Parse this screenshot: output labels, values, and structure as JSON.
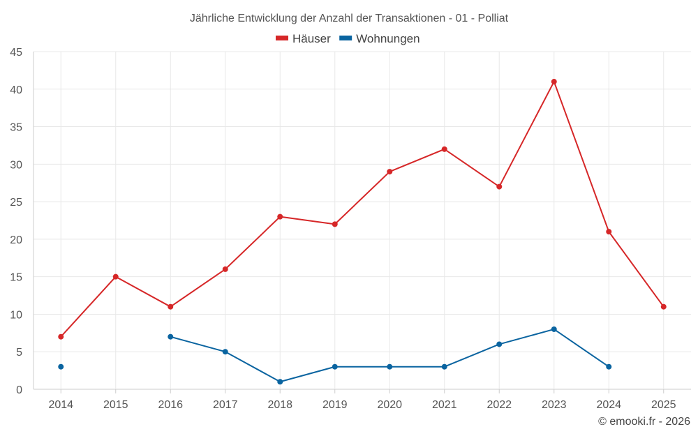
{
  "chart_data": {
    "type": "line",
    "title": "Jährliche Entwicklung der Anzahl der Transaktionen - 01 - Polliat",
    "xlabel": "",
    "ylabel": "",
    "categories": [
      "2014",
      "2015",
      "2016",
      "2017",
      "2018",
      "2019",
      "2020",
      "2021",
      "2022",
      "2023",
      "2024",
      "2025"
    ],
    "ylim": [
      0,
      45
    ],
    "yticks": [
      0,
      5,
      10,
      15,
      20,
      25,
      30,
      35,
      40,
      45
    ],
    "grid": true,
    "legend_position": "top-center",
    "series": [
      {
        "name": "Häuser",
        "color": "#d62728",
        "values": [
          7,
          15,
          11,
          16,
          23,
          22,
          29,
          32,
          27,
          41,
          21,
          11
        ]
      },
      {
        "name": "Wohnungen",
        "color": "#0a64a0",
        "values": [
          3,
          null,
          7,
          5,
          1,
          3,
          3,
          3,
          6,
          8,
          3,
          null
        ]
      }
    ]
  },
  "credit": "© emooki.fr - 2026"
}
